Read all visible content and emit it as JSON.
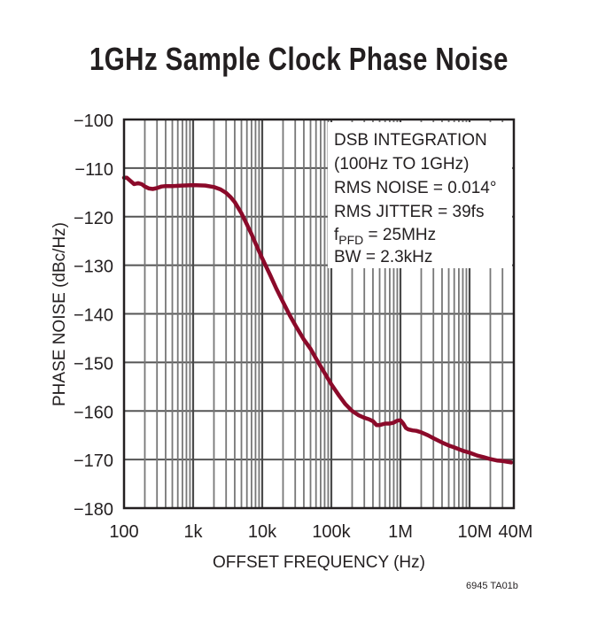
{
  "title": "1GHz Sample Clock Phase Noise",
  "figure_code": "6945 TA01b",
  "annotation": {
    "lines": [
      "DSB INTEGRATION",
      "(100Hz TO 1GHz)",
      "RMS NOISE = 0.014°",
      "RMS JITTER = 39fs"
    ],
    "fpfd_main": "f",
    "fpfd_sub": "PFD",
    "fpfd_rest": " = 25MHz",
    "bw": "BW = 2.3kHz"
  },
  "colors": {
    "curve": "#8b0a2a",
    "grid": "#555555",
    "frame": "#231f20",
    "text": "#231f20"
  },
  "chart_data": {
    "type": "line",
    "title": "1GHz Sample Clock Phase Noise",
    "xlabel": "OFFSET FREQUENCY (Hz)",
    "ylabel": "PHASE NOISE (dBc/Hz)",
    "xscale": "log",
    "xlim": [
      100,
      40000000
    ],
    "ylim": [
      -180,
      -100
    ],
    "grid": true,
    "x_tick_labels": [
      "100",
      "1k",
      "10k",
      "100k",
      "1M",
      "10M",
      "40M"
    ],
    "x_ticks": [
      100,
      1000,
      10000,
      100000,
      1000000,
      10000000,
      40000000
    ],
    "y_tick_labels": [
      "-100",
      "-110",
      "-120",
      "-130",
      "-140",
      "-150",
      "-160",
      "-170",
      "-180"
    ],
    "y_ticks": [
      -100,
      -110,
      -120,
      -130,
      -140,
      -150,
      -160,
      -170,
      -180
    ],
    "series": [
      {
        "name": "Phase Noise",
        "x": [
          100,
          110,
          125,
          140,
          160,
          180,
          200,
          230,
          260,
          300,
          350,
          400,
          500,
          700,
          1000,
          1500,
          2000,
          2500,
          3000,
          3500,
          4000,
          5000,
          6000,
          7000,
          8000,
          10000,
          13000,
          16000,
          20000,
          25000,
          30000,
          40000,
          50000,
          60000,
          70000,
          80000,
          100000,
          130000,
          160000,
          200000,
          250000,
          300000,
          350000,
          400000,
          450000,
          500000,
          600000,
          700000,
          800000,
          900000,
          1000000,
          1100000,
          1200000,
          1300000,
          1500000,
          1700000,
          2000000,
          2500000,
          3000000,
          4000000,
          5000000,
          6000000,
          8000000,
          10000000,
          13000000,
          16000000,
          20000000,
          25000000,
          30000000,
          40000000
        ],
        "values": [
          -112,
          -112,
          -112.7,
          -113.3,
          -113.1,
          -113.3,
          -113.8,
          -114.2,
          -114.3,
          -114.1,
          -113.8,
          -113.7,
          -113.7,
          -113.6,
          -113.5,
          -113.6,
          -113.9,
          -114.4,
          -115.1,
          -116.0,
          -117.0,
          -119.3,
          -121.6,
          -123.6,
          -125.5,
          -128.6,
          -132.0,
          -134.8,
          -137.6,
          -140.3,
          -142.3,
          -145.3,
          -147.2,
          -149.2,
          -150.8,
          -152.2,
          -154.5,
          -156.9,
          -158.6,
          -160.0,
          -160.9,
          -161.4,
          -161.7,
          -162.1,
          -162.9,
          -162.9,
          -162.6,
          -162.6,
          -162.4,
          -162.0,
          -161.9,
          -162.6,
          -163.5,
          -163.8,
          -164.0,
          -164.1,
          -164.4,
          -165.0,
          -165.6,
          -166.5,
          -167.1,
          -167.5,
          -168.2,
          -168.6,
          -169.2,
          -169.5,
          -169.9,
          -170.2,
          -170.3,
          -170.6
        ]
      }
    ]
  }
}
